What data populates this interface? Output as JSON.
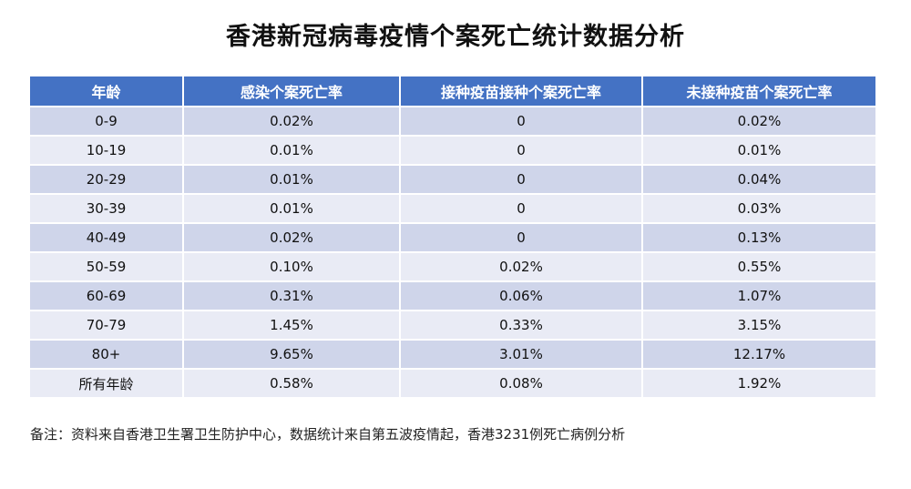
{
  "title": "香港新冠病毒疫情个案死亡统计数据分析",
  "table": {
    "headers": [
      "年龄",
      "感染个案死亡率",
      "接种疫苗接种个案死亡率",
      "未接种疫苗个案死亡率"
    ],
    "rows": [
      [
        "0-9",
        "0.02%",
        "0",
        "0.02%"
      ],
      [
        "10-19",
        "0.01%",
        "0",
        "0.01%"
      ],
      [
        "20-29",
        "0.01%",
        "0",
        "0.04%"
      ],
      [
        "30-39",
        "0.01%",
        "0",
        "0.03%"
      ],
      [
        "40-49",
        "0.02%",
        "0",
        "0.13%"
      ],
      [
        "50-59",
        "0.10%",
        "0.02%",
        "0.55%"
      ],
      [
        "60-69",
        "0.31%",
        "0.06%",
        "1.07%"
      ],
      [
        "70-79",
        "1.45%",
        "0.33%",
        "3.15%"
      ],
      [
        "80+",
        "9.65%",
        "3.01%",
        "12.17%"
      ],
      [
        "所有年龄",
        "0.58%",
        "0.08%",
        "1.92%"
      ]
    ]
  },
  "note": "备注：资料来自香港卫生署卫生防护中心，数据统计来自第五波疫情起，香港3231例死亡病例分析",
  "colors": {
    "header_bg": "#4472c4",
    "row_dark": "#cfd5ea",
    "row_light": "#e9ebf5"
  }
}
